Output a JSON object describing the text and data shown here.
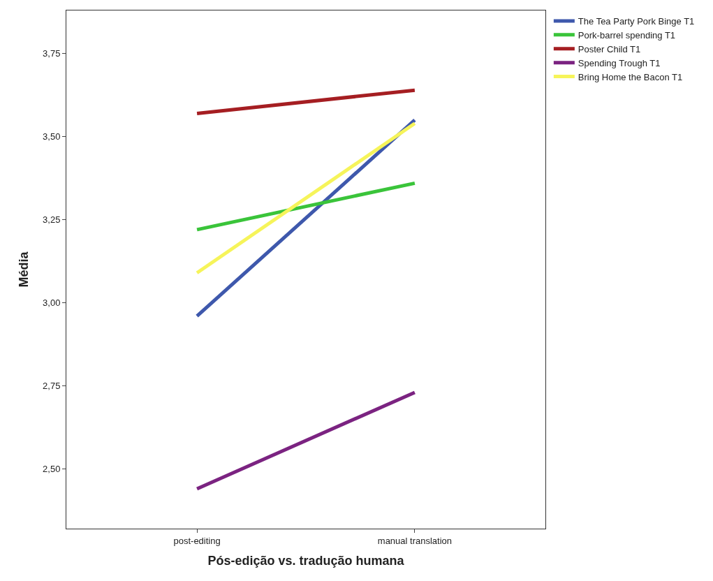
{
  "chart_data": {
    "type": "line",
    "xlabel": "Pós-edição vs. tradução humana",
    "ylabel": "Média",
    "categories": [
      "post-editing",
      "manual translation"
    ],
    "series": [
      {
        "name": "The Tea Party Pork Binge T1",
        "color": "#3e58ac",
        "values": [
          2.96,
          3.55
        ]
      },
      {
        "name": "Pork-barrel spending T1",
        "color": "#3ac43a",
        "values": [
          3.22,
          3.36
        ]
      },
      {
        "name": "Poster Child T1",
        "color": "#a51e22",
        "values": [
          3.57,
          3.64
        ]
      },
      {
        "name": "Spending Trough T1",
        "color": "#7b2381",
        "values": [
          2.44,
          2.73
        ]
      },
      {
        "name": "Bring Home the Bacon T1",
        "color": "#f6f45a",
        "values": [
          3.09,
          3.54
        ]
      }
    ],
    "ylim": [
      2.32,
      3.88
    ],
    "yticks": [
      {
        "value": 2.5,
        "label": "2,50"
      },
      {
        "value": 2.75,
        "label": "2,75"
      },
      {
        "value": 3.0,
        "label": "3,00"
      },
      {
        "value": 3.25,
        "label": "3,25"
      },
      {
        "value": 3.5,
        "label": "3,50"
      },
      {
        "value": 3.75,
        "label": "3,75"
      }
    ],
    "legend": "top right",
    "marker": "none",
    "line_style": "solid"
  }
}
